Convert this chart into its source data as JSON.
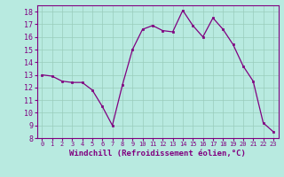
{
  "x": [
    0,
    1,
    2,
    3,
    4,
    5,
    6,
    7,
    8,
    9,
    10,
    11,
    12,
    13,
    14,
    15,
    16,
    17,
    18,
    19,
    20,
    21,
    22,
    23
  ],
  "y": [
    13,
    12.9,
    12.5,
    12.4,
    12.4,
    11.8,
    10.5,
    9.0,
    12.2,
    15.0,
    16.6,
    16.9,
    16.5,
    16.4,
    18.1,
    16.9,
    16.0,
    17.5,
    16.6,
    15.4,
    13.7,
    12.5,
    9.2,
    8.5
  ],
  "xlim": [
    -0.5,
    23.5
  ],
  "ylim": [
    8,
    18.5
  ],
  "yticks": [
    8,
    9,
    10,
    11,
    12,
    13,
    14,
    15,
    16,
    17,
    18
  ],
  "xticks": [
    0,
    1,
    2,
    3,
    4,
    5,
    6,
    7,
    8,
    9,
    10,
    11,
    12,
    13,
    14,
    15,
    16,
    17,
    18,
    19,
    20,
    21,
    22,
    23
  ],
  "xlabel": "Windchill (Refroidissement éolien,°C)",
  "line_color": "#800080",
  "marker_color": "#800080",
  "bg_color": "#b8eae0",
  "grid_color": "#99ccbb",
  "tick_color": "#800080",
  "label_color": "#800080",
  "spine_color": "#800080",
  "marker": "s",
  "markersize": 2.0,
  "linewidth": 0.9,
  "ytick_fontsize": 6.0,
  "xtick_fontsize": 5.0,
  "xlabel_fontsize": 6.5
}
